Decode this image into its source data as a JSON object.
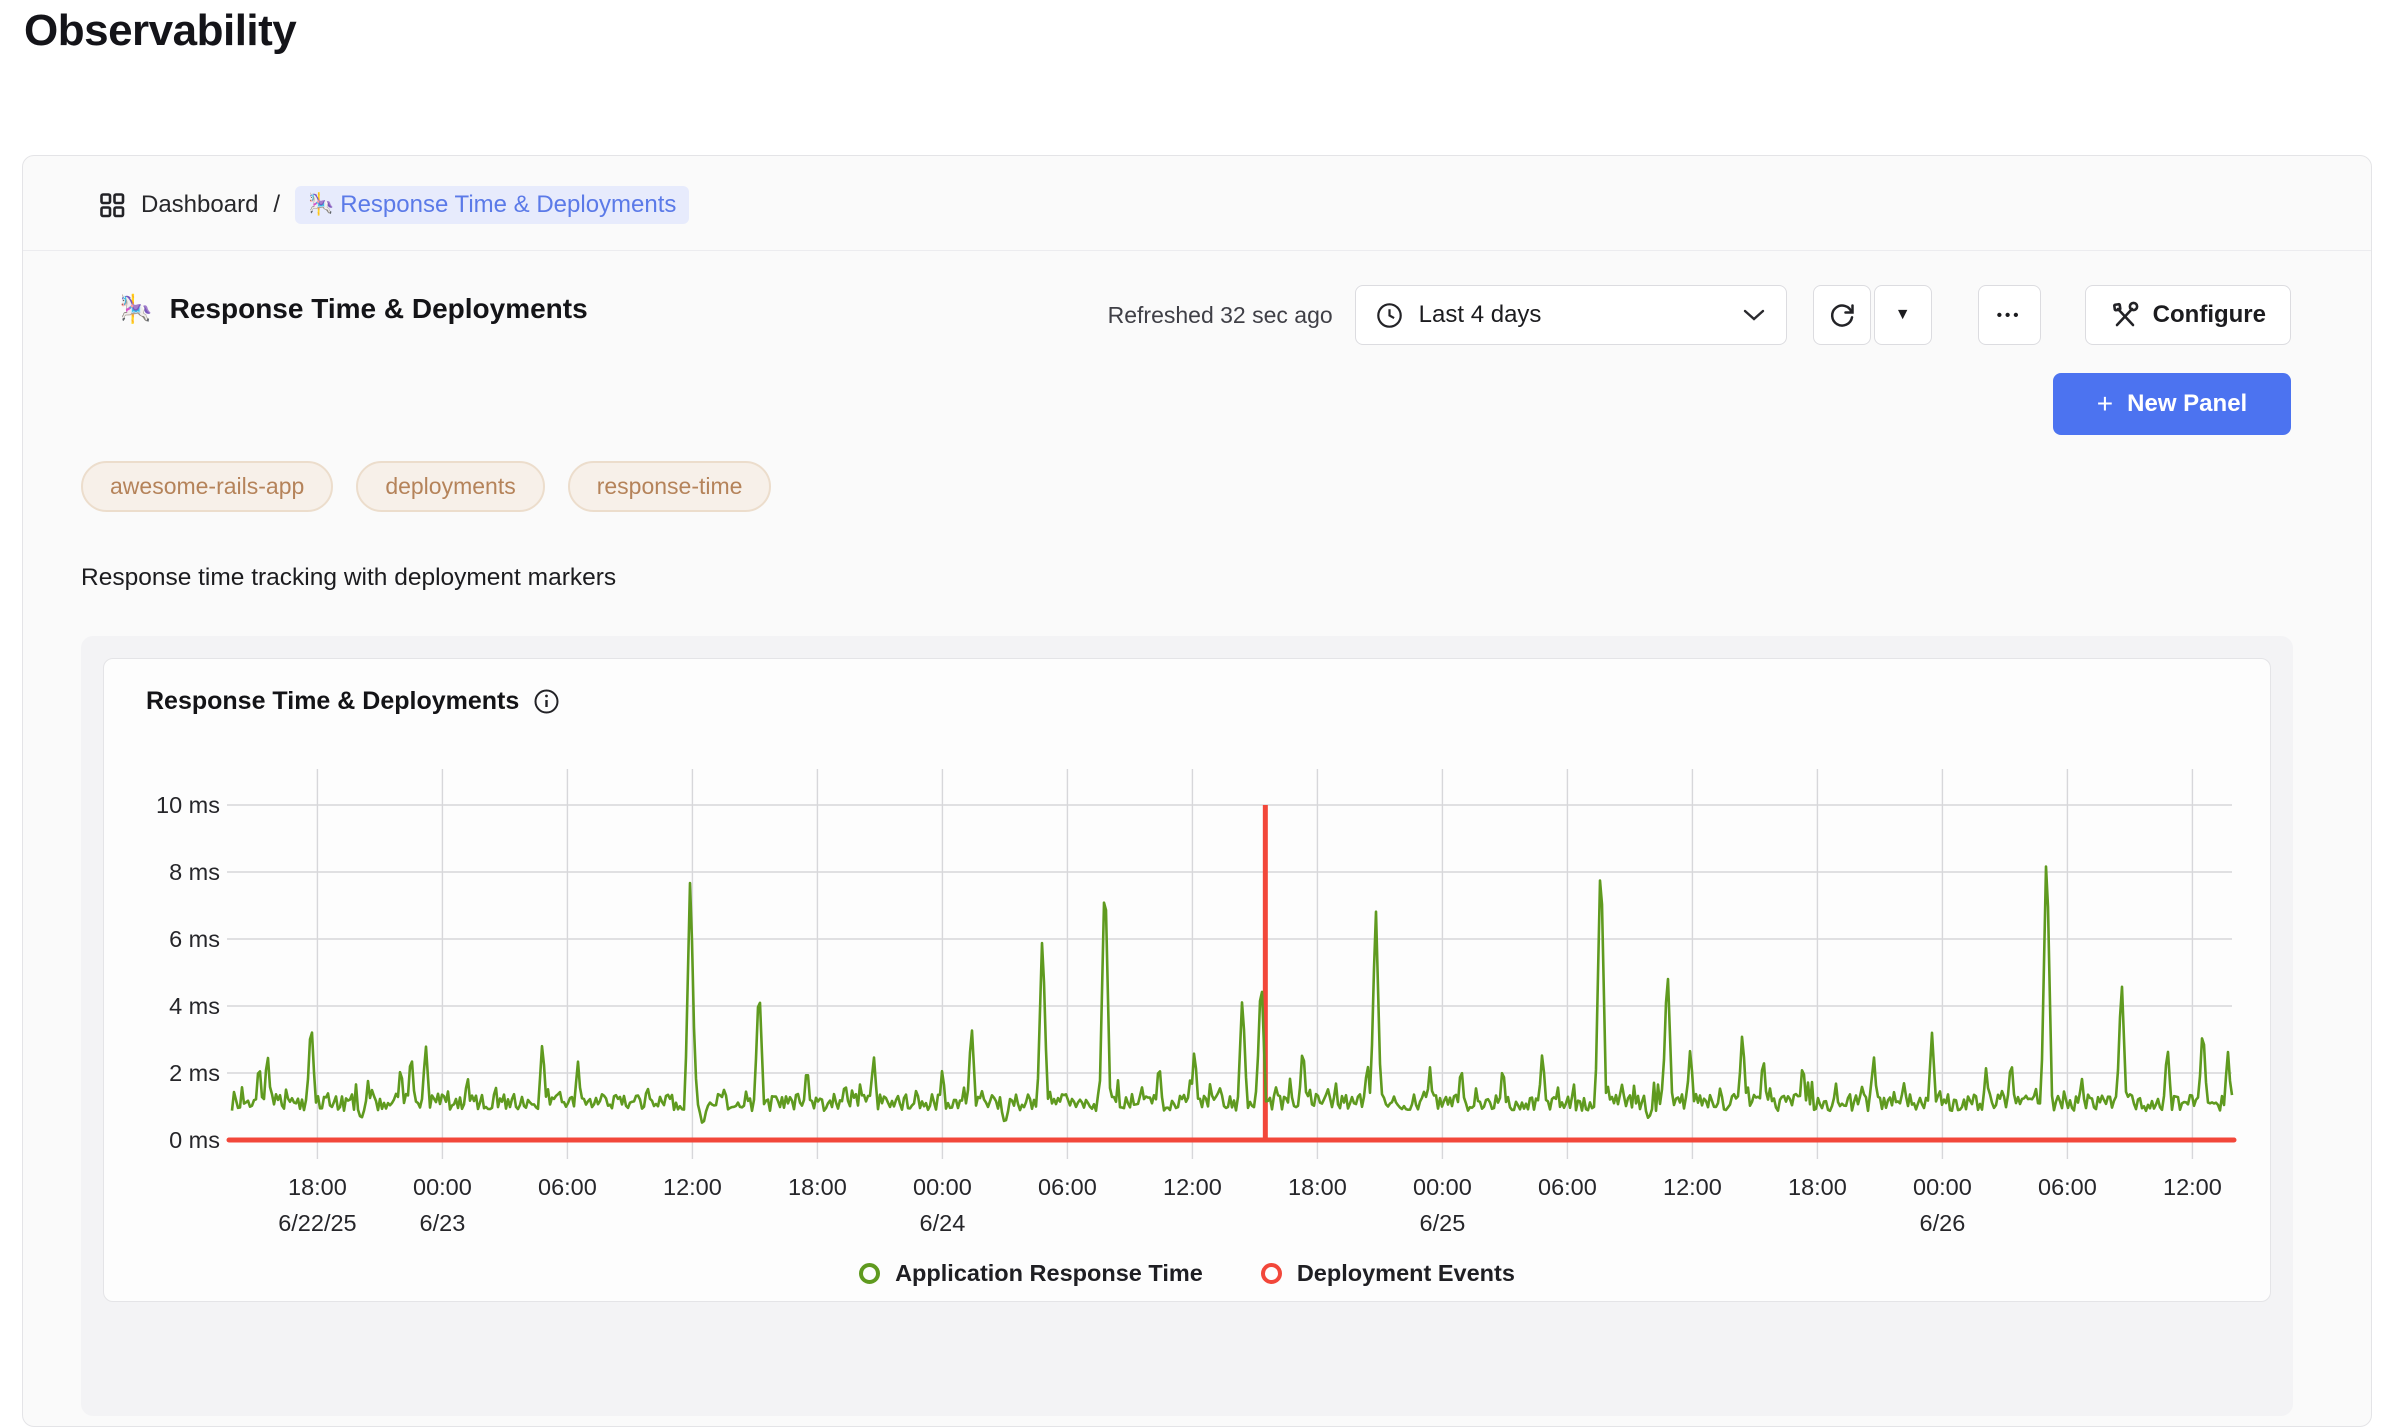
{
  "page": {
    "title": "Observability"
  },
  "breadcrumb": {
    "dashboard_label": "Dashboard",
    "separator": "/",
    "current_emoji": "🎠",
    "current_label": "Response Time & Deployments"
  },
  "header": {
    "emoji": "🎠",
    "title": "Response Time & Deployments",
    "refreshed_label": "Refreshed 32 sec ago",
    "time_range_value": "Last 4 days",
    "dots_label": "•••",
    "configure_label": "Configure",
    "new_panel_plus": "+",
    "new_panel_label": "New Panel"
  },
  "tags": [
    "awesome-rails-app",
    "deployments",
    "response-time"
  ],
  "description": "Response time tracking with deployment markers",
  "panel": {
    "title": "Response Time & Deployments"
  },
  "colors": {
    "accent_blue": "#4c73f0",
    "chip_text": "#5b7ae8",
    "tag_text": "#b5835a",
    "series_green": "#5f9a1f",
    "series_red": "#f2473a",
    "grid": "#d7d7da",
    "axis_text": "#26262a"
  },
  "chart_data": {
    "type": "line",
    "title": "Response Time & Deployments",
    "unit": "ms",
    "ylim": [
      0,
      10
    ],
    "y_ticks": [
      0,
      2,
      4,
      6,
      8,
      10
    ],
    "y_tick_suffix": " ms",
    "x_span_hours": 96,
    "x_start_label": "6/22/25 ~14:00",
    "x_tick_start_hour": 4.1,
    "x_tick_interval_hours": 6,
    "x_ticks": [
      {
        "time": "18:00",
        "date": "6/22/25"
      },
      {
        "time": "00:00",
        "date": "6/23"
      },
      {
        "time": "06:00"
      },
      {
        "time": "12:00"
      },
      {
        "time": "18:00"
      },
      {
        "time": "00:00",
        "date": "6/24"
      },
      {
        "time": "06:00"
      },
      {
        "time": "12:00"
      },
      {
        "time": "18:00"
      },
      {
        "time": "00:00",
        "date": "6/25"
      },
      {
        "time": "06:00"
      },
      {
        "time": "12:00"
      },
      {
        "time": "18:00"
      },
      {
        "time": "00:00",
        "date": "6/26"
      },
      {
        "time": "06:00"
      },
      {
        "time": "12:00"
      }
    ],
    "grid": true,
    "legend_position": "bottom",
    "series": [
      {
        "name": "Application Response Time",
        "color": "#5f9a1f",
        "baseline_ms": 1.05,
        "noise_band_ms": [
          0.9,
          1.3
        ],
        "spikes_hour_ms": [
          [
            1.3,
            2.4
          ],
          [
            1.7,
            2.7
          ],
          [
            3.8,
            3.7
          ],
          [
            8.1,
            2.3
          ],
          [
            8.6,
            2.7
          ],
          [
            9.3,
            2.9
          ],
          [
            11.3,
            2.0
          ],
          [
            14.9,
            3.0
          ],
          [
            16.6,
            2.4
          ],
          [
            22.0,
            8.1
          ],
          [
            25.3,
            4.8
          ],
          [
            27.6,
            2.3
          ],
          [
            30.8,
            2.6
          ],
          [
            34.1,
            2.2
          ],
          [
            35.5,
            3.5
          ],
          [
            38.9,
            6.3
          ],
          [
            41.9,
            8.3
          ],
          [
            44.5,
            2.4
          ],
          [
            46.2,
            2.8
          ],
          [
            48.5,
            4.4
          ],
          [
            49.4,
            5.1
          ],
          [
            51.4,
            2.9
          ],
          [
            54.5,
            2.4
          ],
          [
            54.9,
            7.1
          ],
          [
            57.5,
            2.2
          ],
          [
            59.0,
            2.3
          ],
          [
            61.0,
            2.3
          ],
          [
            62.9,
            2.7
          ],
          [
            65.7,
            8.8
          ],
          [
            68.9,
            5.3
          ],
          [
            70.0,
            2.8
          ],
          [
            72.5,
            3.3
          ],
          [
            73.5,
            2.6
          ],
          [
            75.4,
            2.4
          ],
          [
            78.8,
            2.6
          ],
          [
            81.6,
            3.2
          ],
          [
            84.2,
            2.2
          ],
          [
            85.4,
            2.5
          ],
          [
            87.1,
            9.0
          ],
          [
            90.7,
            4.9
          ],
          [
            92.9,
            2.9
          ],
          [
            94.6,
            3.5
          ],
          [
            95.8,
            2.7
          ]
        ],
        "dips_hour_ms": [
          [
            6.2,
            0.6
          ],
          [
            22.6,
            0.4
          ],
          [
            37.1,
            0.45
          ],
          [
            68.0,
            0.6
          ]
        ]
      },
      {
        "name": "Deployment Events",
        "color": "#f2473a",
        "baseline_ms": 0,
        "event_hours": [
          49.6
        ],
        "event_marker_top_ms": 10
      }
    ]
  },
  "legend": [
    {
      "label": "Application Response Time",
      "color": "#5f9a1f"
    },
    {
      "label": "Deployment Events",
      "color": "#f2473a"
    }
  ]
}
